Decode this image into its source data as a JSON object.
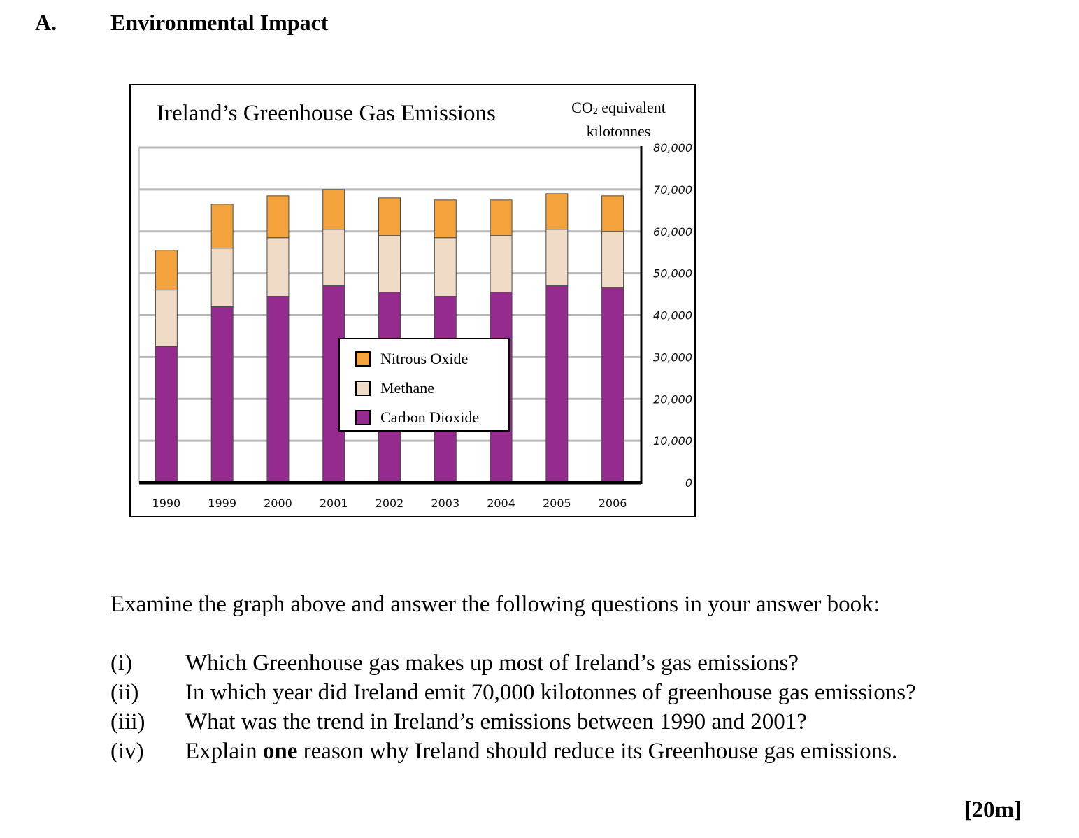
{
  "section": {
    "letter": "A.",
    "title": "Environmental Impact"
  },
  "chart": {
    "unit_label_prefix": "CO",
    "unit_label_sub": "2",
    "unit_label_suffix": " equivalent",
    "unit_label_line2": "kilotonnes"
  },
  "chart_data": {
    "type": "bar",
    "stacked": true,
    "title": "Ireland’s Greenhouse Gas Emissions",
    "ylabel": "CO2 equivalent kilotonnes",
    "xlabel": "",
    "categories": [
      "1990",
      "1999",
      "2000",
      "2001",
      "2002",
      "2003",
      "2004",
      "2005",
      "2006"
    ],
    "series": [
      {
        "name": "Carbon Dioxide",
        "color": "#952a8f",
        "values": [
          32500,
          42000,
          44500,
          47000,
          45500,
          44500,
          45500,
          47000,
          46500
        ]
      },
      {
        "name": "Methane",
        "color": "#f0dcc6",
        "values": [
          13500,
          14000,
          14000,
          13500,
          13500,
          14000,
          13500,
          13500,
          13500
        ]
      },
      {
        "name": "Nitrous Oxide",
        "color": "#f4a23c",
        "values": [
          9500,
          10500,
          10000,
          9500,
          9000,
          9000,
          8500,
          8500,
          8500
        ]
      }
    ],
    "legend_order": [
      "Nitrous Oxide",
      "Methane",
      "Carbon Dioxide"
    ],
    "ylim": [
      0,
      80000
    ],
    "yticks": [
      "0",
      "10,000",
      "20,000",
      "30,000",
      "40,000",
      "50,000",
      "60,000",
      "70,000",
      "80,000"
    ],
    "ytick_values": [
      0,
      10000,
      20000,
      30000,
      40000,
      50000,
      60000,
      70000,
      80000
    ],
    "y_axis_side": "right",
    "grid": true,
    "legend_position": "center"
  },
  "questions": {
    "intro": "Examine the graph above and answer the following questions in your answer book:",
    "items": [
      {
        "num": "(i)",
        "text": "Which Greenhouse gas makes up most of Ireland’s gas emissions?"
      },
      {
        "num": "(ii)",
        "text": "In which year did Ireland emit 70,000 kilotonnes of greenhouse gas emissions?"
      },
      {
        "num": "(iii)",
        "text": "What was the trend in Ireland’s emissions between 1990 and 2001?"
      },
      {
        "num": "(iv)",
        "text_before": "Explain ",
        "text_bold": "one",
        "text_after": " reason why Ireland should reduce its Greenhouse gas emissions."
      }
    ],
    "marks": "[20m]"
  }
}
